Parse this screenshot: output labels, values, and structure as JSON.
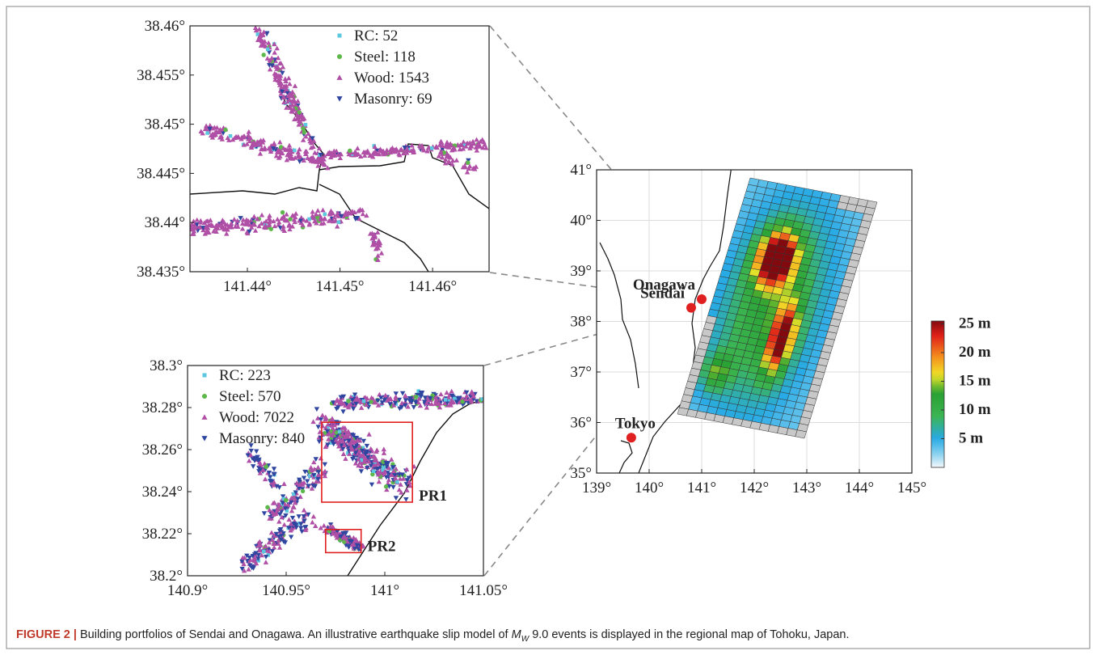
{
  "panels": [
    {
      "type": "scatter",
      "name": "onagawa-inset",
      "xlim": [
        141.4338,
        141.4661
      ],
      "ylim": [
        38.435,
        38.46
      ],
      "xticks": [
        {
          "value": 141.44,
          "label": "141.44°"
        },
        {
          "value": 141.45,
          "label": "141.45°"
        },
        {
          "value": 141.46,
          "label": "141.46°"
        }
      ],
      "yticks": [
        {
          "value": 38.435,
          "label": "38.435°"
        },
        {
          "value": 38.44,
          "label": "38.44°"
        },
        {
          "value": 38.445,
          "label": "38.445°"
        },
        {
          "value": 38.45,
          "label": "38.45°"
        },
        {
          "value": 38.455,
          "label": "38.455°"
        },
        {
          "value": 38.46,
          "label": "38.46°"
        }
      ],
      "series": [
        {
          "name": "RC: 52",
          "color": "#5bc8e0",
          "marker": "square"
        },
        {
          "name": "Steel: 118",
          "color": "#5cb84a",
          "marker": "circle"
        },
        {
          "name": "Wood: 1543",
          "color": "#b04fa6",
          "marker": "triangle-up"
        },
        {
          "name": "Masonry: 69",
          "color": "#2e46a0",
          "marker": "triangle-down"
        }
      ]
    },
    {
      "type": "scatter",
      "name": "sendai-inset",
      "xlim": [
        140.9,
        141.05
      ],
      "ylim": [
        38.2,
        38.3
      ],
      "xticks": [
        {
          "value": 140.9,
          "label": "140.9°"
        },
        {
          "value": 140.95,
          "label": "140.95°"
        },
        {
          "value": 141,
          "label": "141°"
        },
        {
          "value": 141.05,
          "label": "141.05°"
        }
      ],
      "yticks": [
        {
          "value": 38.2,
          "label": "38.2°"
        },
        {
          "value": 38.22,
          "label": "38.22°"
        },
        {
          "value": 38.24,
          "label": "38.24°"
        },
        {
          "value": 38.26,
          "label": "38.26°"
        },
        {
          "value": 38.28,
          "label": "38.28°"
        },
        {
          "value": 38.3,
          "label": "38.3°"
        }
      ],
      "series": [
        {
          "name": "RC: 223",
          "color": "#5bc8e0",
          "marker": "square"
        },
        {
          "name": "Steel: 570",
          "color": "#5cb84a",
          "marker": "circle"
        },
        {
          "name": "Wood: 7022",
          "color": "#b04fa6",
          "marker": "triangle-up"
        },
        {
          "name": "Masonry: 840",
          "color": "#2e46a0",
          "marker": "triangle-down"
        }
      ],
      "regions": [
        {
          "label": "PR1",
          "x": [
            140.968,
            141.014
          ],
          "y": [
            38.235,
            38.273
          ],
          "color": "#e02020"
        },
        {
          "label": "PR2",
          "x": [
            140.97,
            140.988
          ],
          "y": [
            38.211,
            38.222
          ],
          "color": "#e02020"
        }
      ]
    },
    {
      "type": "map",
      "name": "tohoku-map",
      "xlim": [
        139,
        145
      ],
      "ylim": [
        35,
        41
      ],
      "grid": true,
      "xticks": [
        {
          "value": 139,
          "label": "139°"
        },
        {
          "value": 140,
          "label": "140°"
        },
        {
          "value": 141,
          "label": "141°"
        },
        {
          "value": 142,
          "label": "142°"
        },
        {
          "value": 143,
          "label": "143°"
        },
        {
          "value": 144,
          "label": "144°"
        },
        {
          "value": 145,
          "label": "145°"
        }
      ],
      "yticks": [
        {
          "value": 35,
          "label": "35°"
        },
        {
          "value": 36,
          "label": "36°"
        },
        {
          "value": 37,
          "label": "37°"
        },
        {
          "value": 38,
          "label": "38°"
        },
        {
          "value": 39,
          "label": "39°"
        },
        {
          "value": 40,
          "label": "40°"
        },
        {
          "value": 41,
          "label": "41°"
        }
      ],
      "cities": [
        {
          "label": "Onagawa",
          "x": 141.0,
          "y": 38.44,
          "color": "#e02020"
        },
        {
          "label": "Sendai",
          "x": 140.8,
          "y": 38.27,
          "color": "#e02020"
        },
        {
          "label": "Tokyo",
          "x": 139.66,
          "y": 35.7,
          "color": "#e02020"
        }
      ],
      "colorbar": {
        "clim": [
          0,
          25.5
        ],
        "ticks": [
          {
            "value": 5,
            "label": "5 m"
          },
          {
            "value": 10,
            "label": "10 m"
          },
          {
            "value": 15,
            "label": "15 m"
          },
          {
            "value": 20,
            "label": "20 m"
          },
          {
            "value": 25,
            "label": "25 m"
          }
        ]
      }
    }
  ],
  "caption": {
    "label": "FIGURE 2 |",
    "text_before": "Building portfolios of Sendai and Onagawa. An illustrative earthquake slip model of",
    "math_main": "M",
    "math_sub": "W",
    "text_after": "9.0 events is displayed in the regional map of Tohoku, Japan."
  }
}
